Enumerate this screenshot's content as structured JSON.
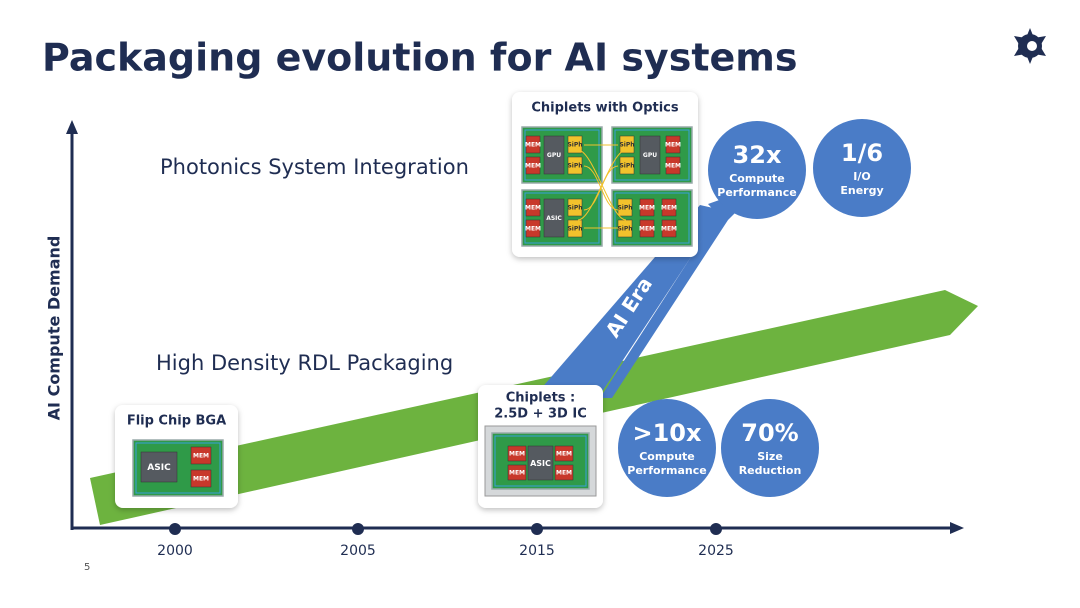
{
  "title": "Packaging evolution for AI systems",
  "axis": {
    "y_label": "AI Compute Demand",
    "x_labels": [
      "2000",
      "2005",
      "2015",
      "2025"
    ]
  },
  "tracks": [
    {
      "label": "Photonics System Integration"
    },
    {
      "label": "High Density RDL Packaging"
    }
  ],
  "ai_era": "AI Era",
  "cards": [
    {
      "title": [
        "Chiplets with Optics"
      ],
      "boards": [
        [
          "MEM",
          "MEM",
          "GPU",
          "SiPh",
          "SiPh"
        ],
        [
          "SiPh",
          "SiPh",
          "GPU",
          "MEM",
          "MEM"
        ],
        [
          "MEM",
          "MEM",
          "ASIC",
          "SiPh",
          "SiPh"
        ],
        [
          "SiPh",
          "SiPh",
          "MEM",
          "MEM",
          "MEM",
          "MEM"
        ]
      ]
    },
    {
      "title": [
        "Flip Chip BGA"
      ],
      "boards": [
        [
          "ASIC",
          "MEM",
          "MEM"
        ]
      ]
    },
    {
      "title": [
        "Chiplets :",
        "2.5D + 3D IC"
      ],
      "boards": [
        [
          "MEM",
          "MEM",
          "ASIC",
          "MEM",
          "MEM"
        ]
      ]
    }
  ],
  "metrics": [
    {
      "value": "32x",
      "caption": [
        "Compute",
        "Performance"
      ]
    },
    {
      "value": "1/6",
      "caption": [
        "I/O",
        "Energy"
      ]
    },
    {
      "value": ">10x",
      "caption": [
        "Compute",
        "Performance"
      ]
    },
    {
      "value": "70%",
      "caption": [
        "Size",
        "Reduction"
      ]
    }
  ],
  "page_number": "5"
}
